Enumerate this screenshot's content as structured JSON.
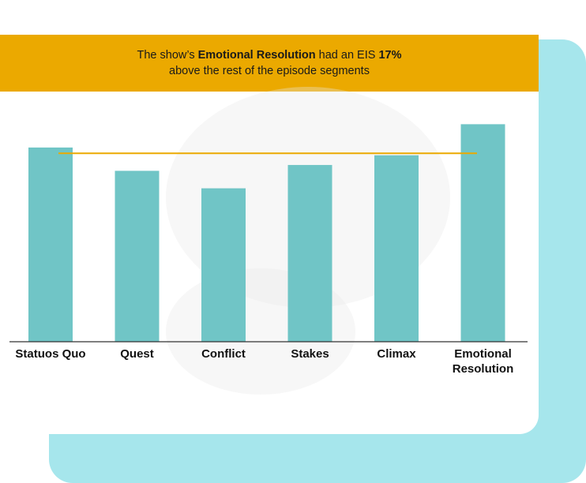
{
  "banner": {
    "part1": "The show’s ",
    "highlight1": "Emotional Resolution",
    "part2": " had an EIS ",
    "highlight2": "17%",
    "line2": "above the rest of the episode segments"
  },
  "chart_data": {
    "type": "bar",
    "title": "",
    "xlabel": "",
    "ylabel": "",
    "categories": [
      "Statuos Quo",
      "Quest",
      "Conflict",
      "Stakes",
      "Climax",
      "Emotional Resolution"
    ],
    "category_lines": [
      [
        "Statuos Quo"
      ],
      [
        "Quest"
      ],
      [
        "Conflict"
      ],
      [
        "Stakes"
      ],
      [
        "Climax"
      ],
      [
        "Emotional",
        "Resolution"
      ]
    ],
    "values": [
      100,
      88,
      79,
      91,
      96,
      112
    ],
    "ylim": [
      0,
      115
    ],
    "reference_line": 97,
    "grid": false,
    "legend": "none"
  },
  "colors": {
    "bar": "#70c5c6",
    "reference_line": "#eba900",
    "axis": "#333333"
  }
}
